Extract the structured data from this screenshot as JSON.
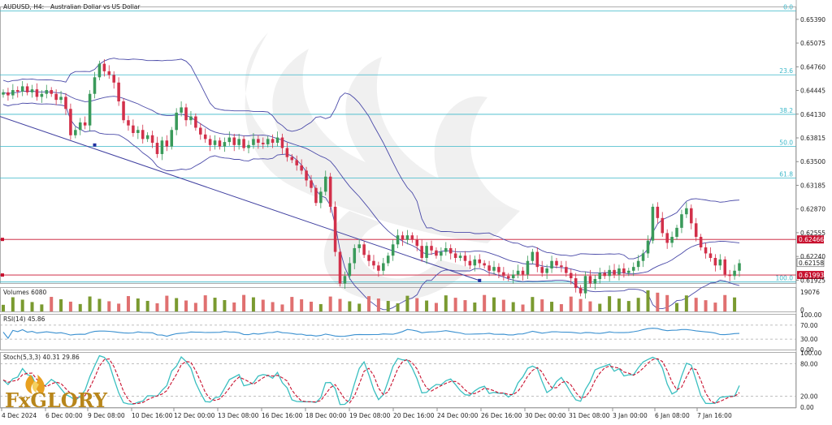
{
  "header": {
    "symbol": "AUDUSD, H4:",
    "description": "Australian Dollar vs US Dollar"
  },
  "logo": {
    "text": "FxGLORY"
  },
  "colors": {
    "bull": "#3a9a5a",
    "bear": "#d2304a",
    "bands": "#4a4aa8",
    "fib": "#3ab7c9",
    "resistance": "#c8102e",
    "rsi": "#3a90d0",
    "stoch_main": "#3abfc0",
    "stoch_signal": "#c8102e",
    "vol_up": "#7a9a30",
    "vol_down": "#e07070"
  },
  "chart_data": [
    {
      "panel": "price",
      "type": "candlestick",
      "ylim": [
        0.61886,
        0.6555
      ],
      "y_ticks": [
        "0.65390",
        "0.65075",
        "0.64760",
        "0.64445",
        "0.64130",
        "0.63815",
        "0.63500",
        "0.63185",
        "0.62870",
        "0.62555",
        "0.62240",
        "0.61925"
      ],
      "fib_levels": [
        {
          "label": "0.0",
          "price": 0.655
        },
        {
          "label": "23.6",
          "price": 0.64653
        },
        {
          "label": "38.2",
          "price": 0.64128
        },
        {
          "label": "50.0",
          "price": 0.63703
        },
        {
          "label": "61.8",
          "price": 0.6328
        },
        {
          "label": "100.0",
          "price": 0.619
        }
      ],
      "price_lines": [
        {
          "label": "0.62466",
          "price": 0.62466
        },
        {
          "label": "0.61993",
          "price": 0.61993
        }
      ],
      "current_price": {
        "label": "0.62158",
        "price": 0.62158
      },
      "x_labels": [
        "4 Dec 2024",
        "6 Dec 00:00",
        "9 Dec 08:00",
        "10 Dec 16:00",
        "12 Dec 00:00",
        "13 Dec 08:00",
        "16 Dec 16:00",
        "18 Dec 00:00",
        "19 Dec 08:00",
        "20 Dec 16:00",
        "24 Dec 00:00",
        "26 Dec 16:00",
        "30 Dec 00:00",
        "31 Dec 08:00",
        "3 Jan 00:00",
        "6 Jan 08:00",
        "7 Jan 16:00"
      ],
      "closes": [
        0.6442,
        0.6438,
        0.6445,
        0.6443,
        0.645,
        0.6442,
        0.6446,
        0.6436,
        0.644,
        0.6445,
        0.644,
        0.6432,
        0.6436,
        0.642,
        0.6385,
        0.6392,
        0.6402,
        0.6398,
        0.644,
        0.6462,
        0.648,
        0.647,
        0.6465,
        0.6455,
        0.643,
        0.6405,
        0.6398,
        0.6388,
        0.6392,
        0.638,
        0.6385,
        0.6375,
        0.636,
        0.6378,
        0.637,
        0.6392,
        0.6415,
        0.6422,
        0.6405,
        0.641,
        0.6395,
        0.6386,
        0.638,
        0.6372,
        0.6378,
        0.637,
        0.6376,
        0.6382,
        0.6372,
        0.638,
        0.6368,
        0.6372,
        0.638,
        0.6375,
        0.6373,
        0.638,
        0.6375,
        0.6382,
        0.6368,
        0.6356,
        0.6352,
        0.6345,
        0.6338,
        0.6325,
        0.6315,
        0.6295,
        0.631,
        0.633,
        0.629,
        0.623,
        0.6188,
        0.6198,
        0.6215,
        0.6235,
        0.624,
        0.6226,
        0.6218,
        0.6212,
        0.6205,
        0.6215,
        0.6225,
        0.624,
        0.6252,
        0.6246,
        0.6252,
        0.6246,
        0.6238,
        0.6222,
        0.6238,
        0.6232,
        0.6225,
        0.623,
        0.6235,
        0.6228,
        0.6222,
        0.6225,
        0.6218,
        0.6212,
        0.622,
        0.6215,
        0.6212,
        0.6205,
        0.621,
        0.6203,
        0.6198,
        0.6195,
        0.62,
        0.6205,
        0.62,
        0.6218,
        0.623,
        0.621,
        0.6202,
        0.6208,
        0.6218,
        0.6212,
        0.621,
        0.6202,
        0.6195,
        0.6182,
        0.6175,
        0.6198,
        0.6188,
        0.6194,
        0.6202,
        0.6198,
        0.6206,
        0.62,
        0.6208,
        0.6202,
        0.6205,
        0.621,
        0.6218,
        0.6228,
        0.6245,
        0.629,
        0.6275,
        0.6255,
        0.6242,
        0.625,
        0.6262,
        0.628,
        0.6288,
        0.6268,
        0.625,
        0.6236,
        0.6228,
        0.6222,
        0.6212,
        0.622,
        0.62,
        0.6198,
        0.6205,
        0.6215
      ]
    },
    {
      "panel": "volume",
      "type": "bar",
      "label": "Volumes 6080",
      "y_ticks": [
        "19076",
        "0"
      ],
      "ylim": [
        0,
        19076
      ]
    },
    {
      "panel": "rsi",
      "type": "line",
      "label": "RSI(14) 45.86",
      "y_ticks": [
        "100.00",
        "70.00",
        "30.00",
        "0.00"
      ],
      "ylim": [
        0,
        100
      ],
      "levels": [
        70,
        30
      ]
    },
    {
      "panel": "stochastic",
      "type": "line",
      "label": "Stoch(5,3,3) 40.31 29.86",
      "y_ticks": [
        "100.00",
        "80.00",
        "20.00",
        "0.00"
      ],
      "ylim": [
        0,
        100
      ],
      "levels": [
        80,
        20
      ]
    }
  ]
}
